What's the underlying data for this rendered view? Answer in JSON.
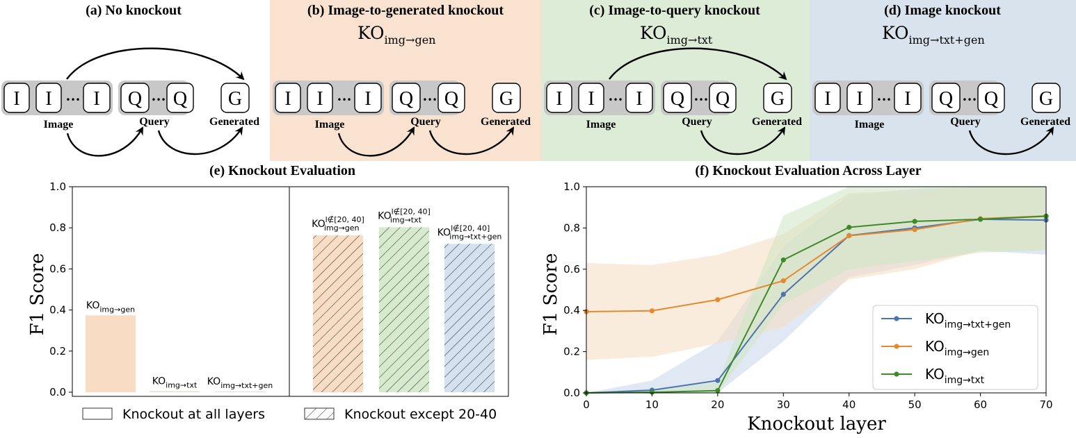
{
  "panels": {
    "a": {
      "title": "(a) No knockout",
      "ko_base": "",
      "ko_sub": ""
    },
    "b": {
      "title": "(b) Image-to-generated knockout",
      "ko_base": "KO",
      "ko_sub": "img→gen"
    },
    "c": {
      "title": "(c) Image-to-query knockout",
      "ko_base": "KO",
      "ko_sub": "img→txt"
    },
    "d": {
      "title": "(d) Image knockout",
      "ko_base": "KO",
      "ko_sub": "img→txt+gen"
    }
  },
  "tokens": {
    "image": "I",
    "query": "Q",
    "generated": "G",
    "dots": "•••"
  },
  "groups": {
    "image": "Image",
    "query": "Query",
    "generated": "Generated"
  },
  "colors": {
    "panel_b": "#f9e3d0",
    "panel_c": "#dcecd6",
    "panel_d": "#d8e3ee",
    "blue": "#4c72b0",
    "orange": "#e5892e",
    "green": "#3d8b28",
    "group_bg": "#c8c8c8"
  },
  "chart_data": [
    {
      "type": "bar",
      "title": "(e) Knockout Evaluation",
      "ylabel": "F1 Score",
      "ylim": [
        0,
        1.0
      ],
      "yticks": [
        "0.0",
        "0.2",
        "0.4",
        "0.6",
        "0.8",
        "1.0"
      ],
      "bars": [
        {
          "label_base": "KO",
          "label_sup": "",
          "label_sub": "img→gen",
          "value": 0.374,
          "color": "#f8dcc4",
          "hatch": false
        },
        {
          "label_base": "KO",
          "label_sup": "",
          "label_sub": "img→txt",
          "value": 0.005,
          "color": "#d6ebcd",
          "hatch": false
        },
        {
          "label_base": "KO",
          "label_sup": "",
          "label_sub": "img→txt+gen",
          "value": 0.004,
          "color": "#d4e1ee",
          "hatch": false
        },
        {
          "label_base": "KO",
          "label_sup": "l∉[20, 40]",
          "label_sub": "img→gen",
          "value": 0.763,
          "color": "#f8dcc4",
          "hatch": true
        },
        {
          "label_base": "KO",
          "label_sup": "l∉[20, 40]",
          "label_sub": "img→txt",
          "value": 0.803,
          "color": "#d6ebcd",
          "hatch": true
        },
        {
          "label_base": "KO",
          "label_sup": "l∉[20, 40]",
          "label_sub": "img→txt+gen",
          "value": 0.722,
          "color": "#d4e1ee",
          "hatch": true
        }
      ],
      "legend": [
        "Knockout at all layers",
        "Knockout except 20-40"
      ]
    },
    {
      "type": "line",
      "title": "(f) Knockout Evaluation Across Layer",
      "xlabel": "Knockout layer",
      "ylabel": "F1 Score",
      "xlim": [
        0,
        70
      ],
      "ylim": [
        0,
        1.0
      ],
      "x": [
        0,
        10,
        20,
        30,
        40,
        50,
        60,
        70
      ],
      "xticks": [
        "0",
        "10",
        "20",
        "30",
        "40",
        "50",
        "60",
        "70"
      ],
      "yticks": [
        "0.0",
        "0.2",
        "0.4",
        "0.6",
        "0.8",
        "1.0"
      ],
      "legend_position": "lower right",
      "series": [
        {
          "name_base": "KO",
          "name_sub": "img→txt+gen",
          "color": "#4c72b0",
          "fill": "#c6d7ea",
          "values": [
            0.0,
            0.013,
            0.06,
            0.478,
            0.763,
            0.8,
            0.842,
            0.838
          ],
          "lower": [
            0.0,
            0.0,
            0.0,
            0.25,
            0.56,
            0.62,
            0.69,
            0.67
          ],
          "upper": [
            0.0,
            0.06,
            0.25,
            0.71,
            0.96,
            0.99,
            1.0,
            1.0
          ]
        },
        {
          "name_base": "KO",
          "name_sub": "img→gen",
          "color": "#e5892e",
          "fill": "#f6dcc0",
          "values": [
            0.394,
            0.398,
            0.452,
            0.544,
            0.762,
            0.792,
            0.845,
            0.858
          ],
          "lower": [
            0.16,
            0.175,
            0.24,
            0.32,
            0.55,
            0.6,
            0.69,
            0.7
          ],
          "upper": [
            0.63,
            0.62,
            0.67,
            0.77,
            0.97,
            0.98,
            1.0,
            1.0
          ]
        },
        {
          "name_base": "KO",
          "name_sub": "img→txt",
          "color": "#3d8b28",
          "fill": "#cde5c2",
          "values": [
            0.0,
            0.003,
            0.011,
            0.645,
            0.803,
            0.832,
            0.842,
            0.857
          ],
          "lower": [
            0.0,
            0.0,
            0.0,
            0.43,
            0.6,
            0.64,
            0.68,
            0.69
          ],
          "upper": [
            0.0,
            0.02,
            0.05,
            0.86,
            1.0,
            1.0,
            1.0,
            1.0
          ]
        }
      ]
    }
  ]
}
